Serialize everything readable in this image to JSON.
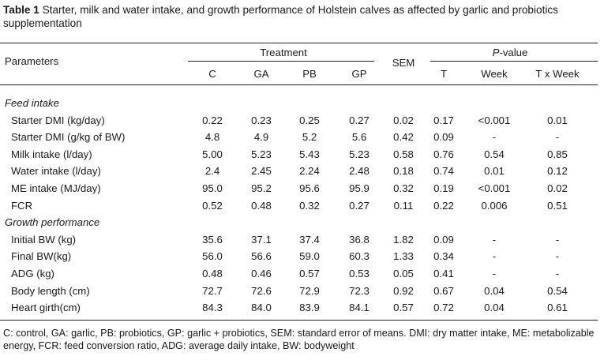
{
  "table": {
    "number": "Table 1",
    "title": "Starter, milk and water intake, and growth performance of Holstein calves as affected by garlic and probiotics supplementation",
    "header": {
      "parameters": "Parameters",
      "treatment": "Treatment",
      "sem": "SEM",
      "p_prefix": "P",
      "p_suffix": "-value",
      "treatments": [
        "C",
        "GA",
        "PB",
        "GP"
      ],
      "pvalues": [
        "T",
        "Week",
        "T x Week"
      ]
    },
    "sections": [
      {
        "title": "Feed intake",
        "rows": [
          {
            "label": "Starter DMI (kg/day)",
            "c": "0.22",
            "ga": "0.23",
            "pb": "0.25",
            "gp": "0.27",
            "sem": "0.02",
            "t": "0.17",
            "week": "<0.001",
            "txw": "0.01"
          },
          {
            "label": "Starter DMI (g/kg of BW)",
            "c": "4.8",
            "ga": "4.9",
            "pb": "5.2",
            "gp": "5.6",
            "sem": "0.42",
            "t": "0.09",
            "week": "-",
            "txw": "-"
          },
          {
            "label": "Milk intake (l/day)",
            "c": "5.00",
            "ga": "5.23",
            "pb": "5.43",
            "gp": "5.23",
            "sem": "0.58",
            "t": "0.76",
            "week": "0.54",
            "txw": "0.85"
          },
          {
            "label": "Water intake (l/day)",
            "c": "2.4",
            "ga": "2.45",
            "pb": "2.24",
            "gp": "2.48",
            "sem": "0.18",
            "t": "0.74",
            "week": "0.01",
            "txw": "0.12"
          },
          {
            "label": "ME intake (MJ/day)",
            "c": "95.0",
            "ga": "95.2",
            "pb": "95.6",
            "gp": "95.9",
            "sem": "0.32",
            "t": "0.19",
            "week": "<0.001",
            "txw": "0.02"
          },
          {
            "label": "FCR",
            "c": "0.52",
            "ga": "0.48",
            "pb": "0.32",
            "gp": "0.27",
            "sem": "0.11",
            "t": "0.22",
            "week": "0.006",
            "txw": "0.51"
          }
        ]
      },
      {
        "title": "Growth performance",
        "rows": [
          {
            "label": "Initial BW (kg)",
            "c": "35.6",
            "ga": "37.1",
            "pb": "37.4",
            "gp": "36.8",
            "sem": "1.82",
            "t": "0.09",
            "week": "-",
            "txw": "-"
          },
          {
            "label": "Final BW(kg)",
            "c": "56.0",
            "ga": "56.6",
            "pb": "59.0",
            "gp": "60.3",
            "sem": "1.33",
            "t": "0.34",
            "week": "-",
            "txw": "-"
          },
          {
            "label": "ADG (kg)",
            "c": "0.48",
            "ga": "0.46",
            "pb": "0.57",
            "gp": "0.53",
            "sem": "0.05",
            "t": "0.41",
            "week": "-",
            "txw": "-"
          },
          {
            "label": "Body length (cm)",
            "c": "72.7",
            "ga": "72.6",
            "pb": "72.9",
            "gp": "72.3",
            "sem": "0.92",
            "t": "0.67",
            "week": "0.04",
            "txw": "0.54"
          },
          {
            "label": "Heart girth(cm)",
            "c": "84.3",
            "ga": "84.0",
            "pb": "83.9",
            "gp": "84.1",
            "sem": "0.57",
            "t": "0.72",
            "week": "0.04",
            "txw": "0.61"
          }
        ]
      }
    ],
    "footnote": "C: control, GA: garlic, PB: probiotics, GP: garlic + probiotics, SEM: standard error of means. DMI: dry matter intake, ME: metabolizable energy, FCR: feed conversion ratio, ADG: average daily intake, BW: bodyweight"
  }
}
